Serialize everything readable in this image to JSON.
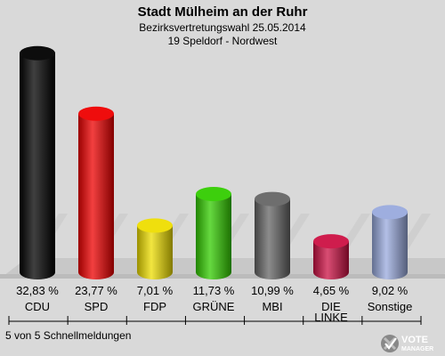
{
  "chart_data": {
    "type": "bar",
    "title": "Stadt Mülheim an der Ruhr",
    "subtitle_1": "Bezirksvertretungswahl 25.05.2014",
    "subtitle_2": "19 Speldorf - Nordwest",
    "categories": [
      "CDU",
      "SPD",
      "FDP",
      "GRÜNE",
      "MBI",
      "DIE LINKE",
      "Sonstige"
    ],
    "values": [
      32.83,
      23.77,
      7.01,
      11.73,
      10.99,
      4.65,
      9.02
    ],
    "value_labels": [
      "32,83 %",
      "23,77 %",
      "7,01 %",
      "11,73 %",
      "10,99 %",
      "4,65 %",
      "9,02 %"
    ],
    "colors": [
      "#000000",
      "#ee0000",
      "#eedd00",
      "#33cc00",
      "#666666",
      "#cc1144",
      "#99aadd"
    ],
    "ylim": [
      0,
      35
    ]
  },
  "footer": "5 von 5 Schnellmeldungen",
  "logo": {
    "line1": "VOTE",
    "line2": "MANAGER"
  }
}
